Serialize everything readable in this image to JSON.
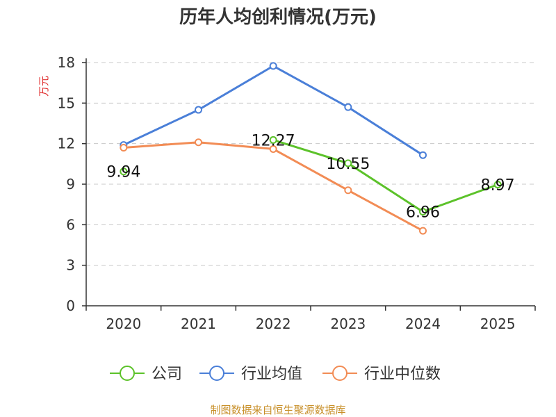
{
  "chart_data": {
    "type": "line",
    "title": "历年人均创利情况(万元)",
    "ylabel": "万元",
    "xlabel": "",
    "ylim": [
      0,
      18
    ],
    "yticks": [
      0,
      3,
      6,
      9,
      12,
      15,
      18
    ],
    "grid": true,
    "legend_position": "bottom",
    "categories": [
      "2020",
      "2021",
      "2022",
      "2023",
      "2024",
      "2025"
    ],
    "series": [
      {
        "name": "公司",
        "color": "#5cc22a",
        "values": [
          9.94,
          null,
          12.27,
          10.55,
          6.96,
          8.97
        ],
        "labels": [
          "9.94",
          null,
          "12.27",
          "10.55",
          "6.96",
          "8.97"
        ]
      },
      {
        "name": "行业均值",
        "color": "#4a7fd8",
        "values": [
          11.9,
          14.5,
          17.75,
          14.7,
          11.15,
          null
        ]
      },
      {
        "name": "行业中位数",
        "color": "#f28c55",
        "values": [
          11.7,
          12.1,
          11.6,
          8.55,
          5.55,
          null
        ]
      }
    ]
  },
  "footer": {
    "source": "制图数据来自恒生聚源数据库"
  }
}
